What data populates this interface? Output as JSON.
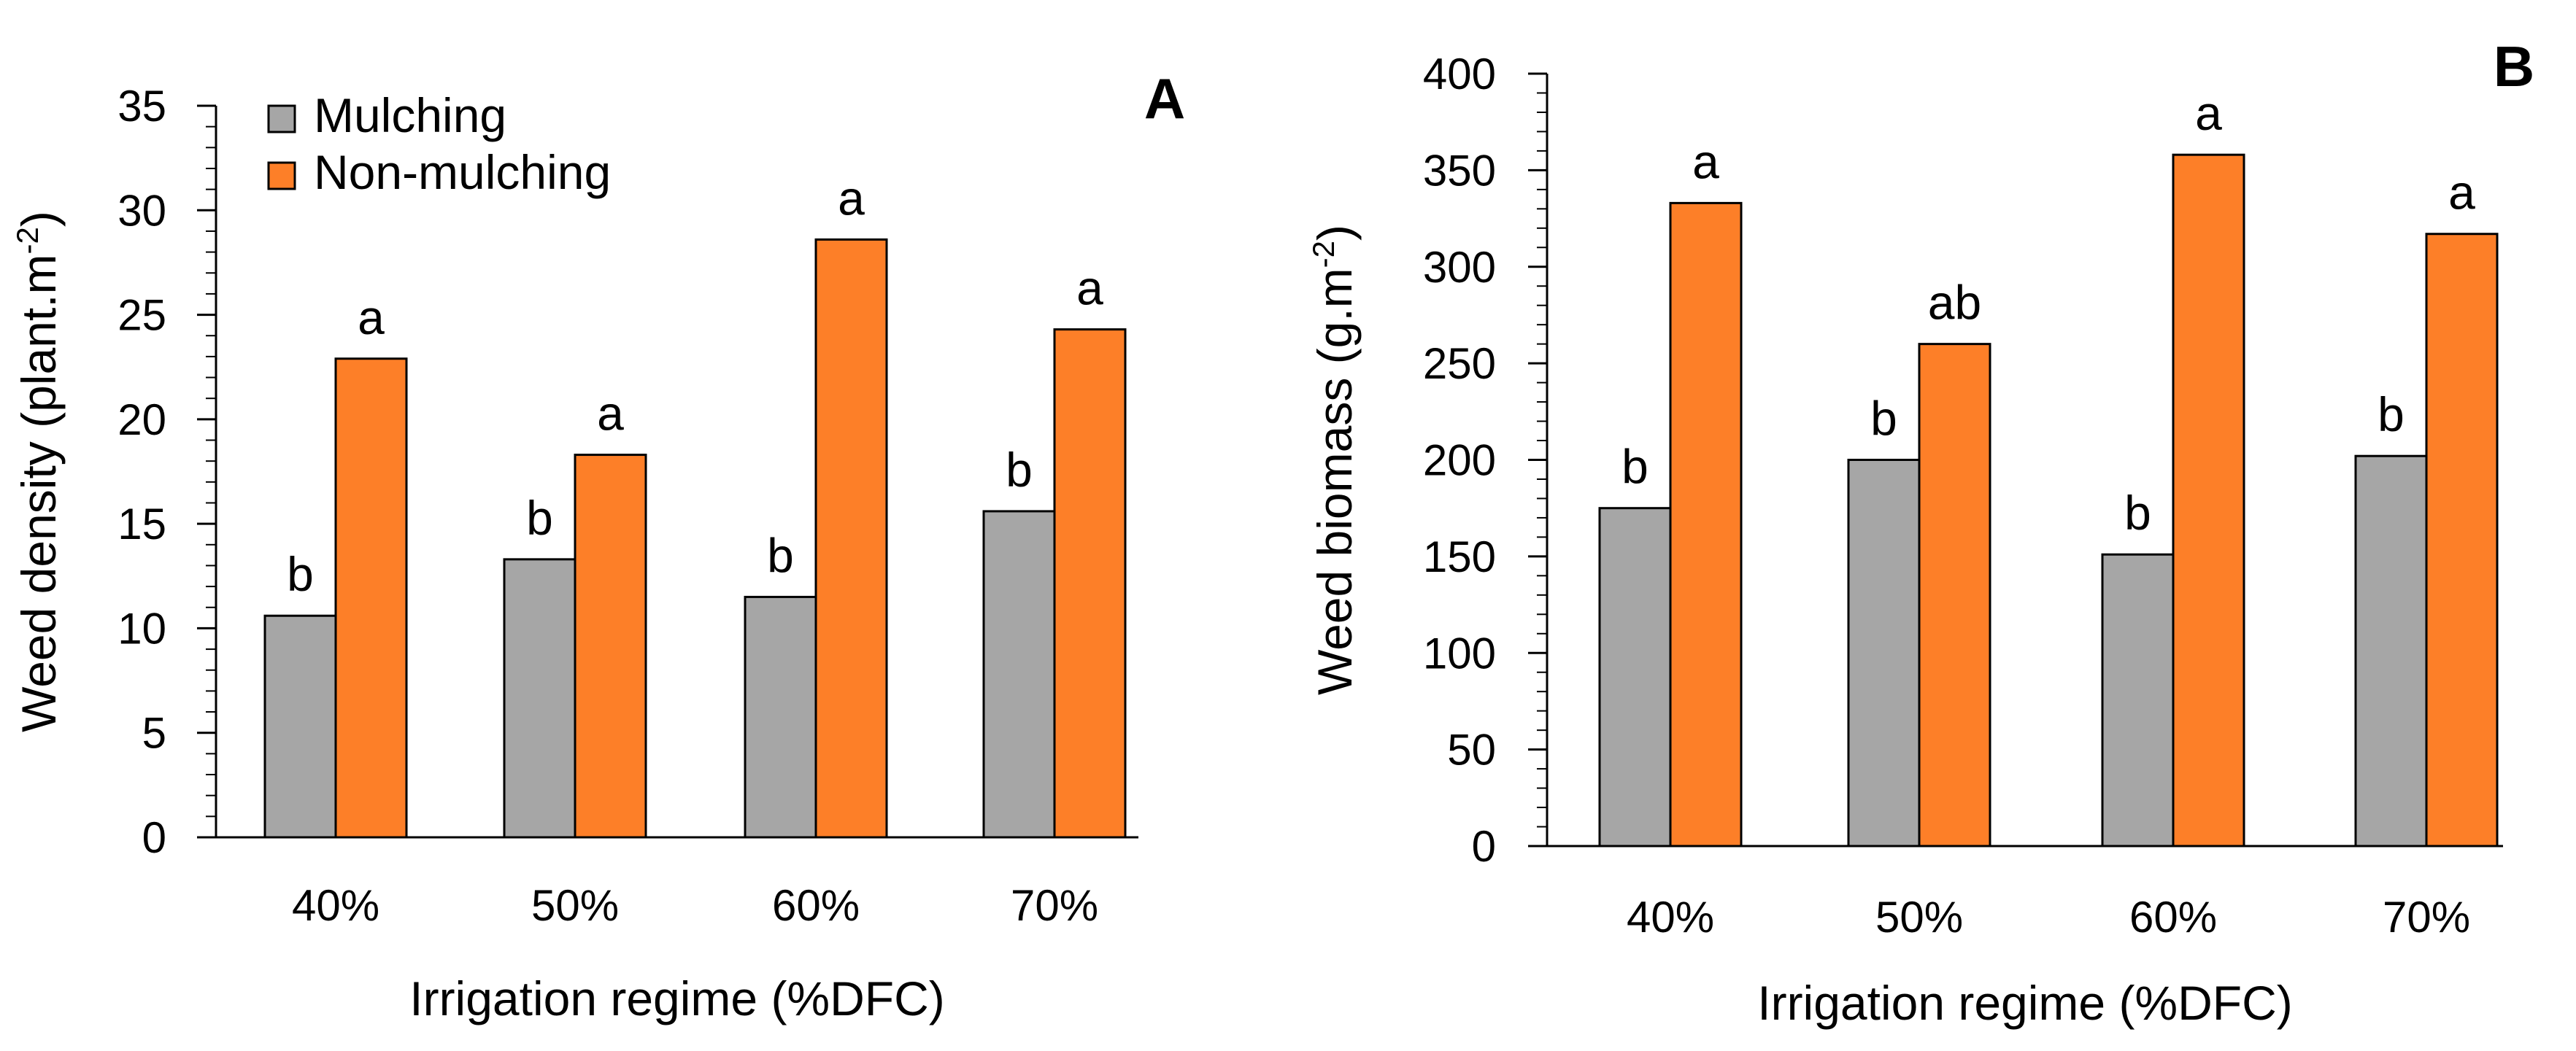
{
  "chart_data": [
    {
      "type": "bar",
      "panel_label": "A",
      "categories": [
        "40%",
        "50%",
        "60%",
        "70%"
      ],
      "series": [
        {
          "name": "Mulching",
          "color": "#a6a6a6",
          "values": [
            10.6,
            13.3,
            11.5,
            15.6
          ],
          "labels": [
            "b",
            "b",
            "b",
            "b"
          ]
        },
        {
          "name": "Non-mulching",
          "color": "#fd7f28",
          "values": [
            22.9,
            18.3,
            28.6,
            24.3
          ],
          "labels": [
            "a",
            "a",
            "a",
            "a"
          ]
        }
      ],
      "xlabel": "Irrigation regime (%DFC)",
      "ylabel": "Weed density (plant.m",
      "ylabel_sup": "-2",
      "ylabel_end": ")",
      "ylim": [
        0,
        35
      ],
      "yticks": [
        0,
        5,
        10,
        15,
        20,
        25,
        30,
        35
      ],
      "minor_step": 1,
      "legend": true,
      "legend_position": "top-left"
    },
    {
      "type": "bar",
      "panel_label": "B",
      "categories": [
        "40%",
        "50%",
        "60%",
        "70%"
      ],
      "series": [
        {
          "name": "Mulching",
          "color": "#a6a6a6",
          "values": [
            175,
            200,
            151,
            202
          ],
          "labels": [
            "b",
            "b",
            "b",
            "b"
          ]
        },
        {
          "name": "Non-mulching",
          "color": "#fd7f28",
          "values": [
            333,
            260,
            358,
            317
          ],
          "labels": [
            "a",
            "ab",
            "a",
            "a"
          ]
        }
      ],
      "xlabel": "Irrigation regime (%DFC)",
      "ylabel": "Weed biomass (g.m",
      "ylabel_sup": "-2",
      "ylabel_end": ")",
      "ylim": [
        0,
        400
      ],
      "yticks": [
        0,
        50,
        100,
        150,
        200,
        250,
        300,
        350,
        400
      ],
      "minor_step": 10,
      "legend": false
    }
  ]
}
